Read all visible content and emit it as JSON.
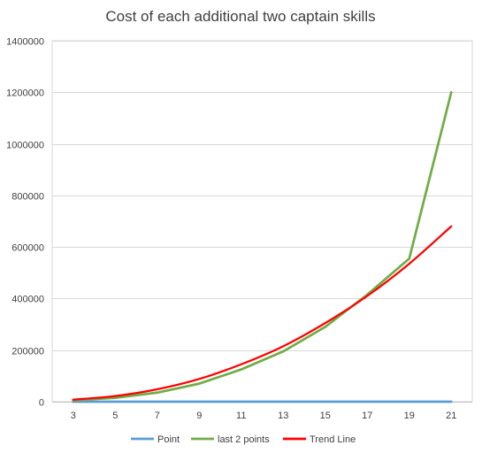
{
  "chart_data": {
    "type": "line",
    "title": "Cost of each additional two captain skills",
    "xlabel": "",
    "ylabel": "",
    "x": [
      3,
      5,
      7,
      9,
      11,
      13,
      15,
      17,
      19,
      21
    ],
    "x_ticks": [
      "3",
      "5",
      "7",
      "9",
      "11",
      "13",
      "15",
      "17",
      "19",
      "21"
    ],
    "y_ticks": [
      "0",
      "200000",
      "400000",
      "600000",
      "800000",
      "1000000",
      "1200000",
      "1400000"
    ],
    "ylim": [
      0,
      1400000
    ],
    "grid": true,
    "legend_position": "bottom",
    "series": [
      {
        "name": "Point",
        "color": "#5b9bd5",
        "values": [
          0,
          0,
          0,
          0,
          0,
          0,
          0,
          0,
          0,
          0
        ]
      },
      {
        "name": "last 2 points",
        "color": "#70ad47",
        "values": [
          5000,
          15000,
          35000,
          70000,
          125000,
          195000,
          290000,
          415000,
          555000,
          1200000
        ]
      },
      {
        "name": "Trend Line",
        "color": "#ff0000",
        "values": [
          8000,
          22000,
          48000,
          88000,
          145000,
          215000,
          305000,
          410000,
          535000,
          680000
        ]
      }
    ]
  }
}
